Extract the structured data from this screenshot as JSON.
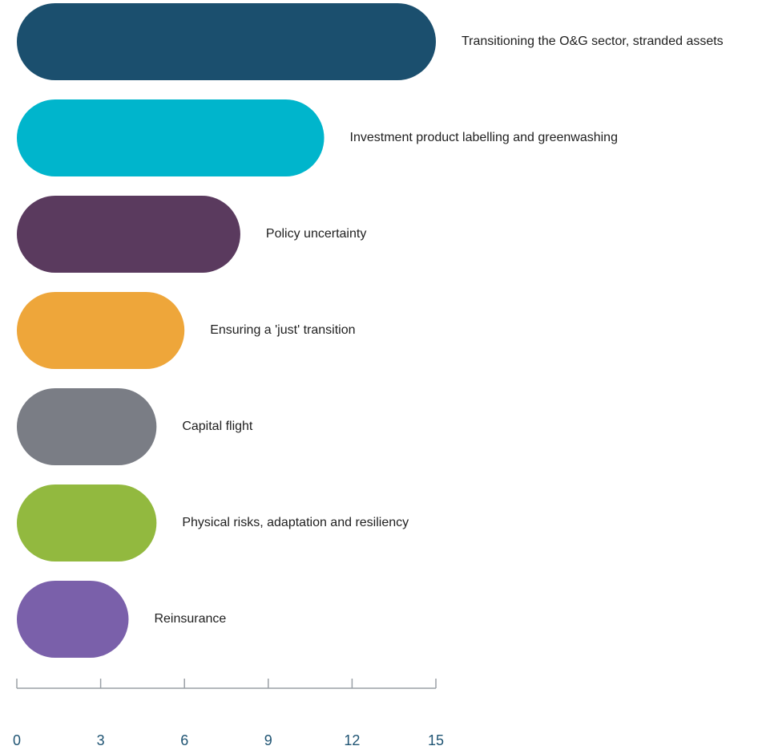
{
  "chart_data": {
    "type": "bar",
    "orientation": "horizontal",
    "categories": [
      "Transitioning the O&G sector, stranded assets",
      "Investment product labelling and greenwashing",
      "Policy uncertainty",
      "Ensuring a 'just' transition",
      "Capital flight",
      "Physical risks, adaptation and resiliency",
      "Reinsurance"
    ],
    "values": [
      15,
      11,
      8,
      6,
      5,
      5,
      4
    ],
    "colors": [
      "#1b4f6e",
      "#00b5cc",
      "#5a3a5e",
      "#eea63a",
      "#7a7d85",
      "#92b93f",
      "#7a60aa"
    ],
    "title": "",
    "xlabel": "",
    "ylabel": "",
    "xlim": [
      0,
      15
    ],
    "xticks": [
      "0",
      "3",
      "6",
      "9",
      "12",
      "15"
    ],
    "grid": false,
    "legend": "none",
    "axis_color": "#9aa0a6",
    "tick_label_color": "#1f5473"
  }
}
